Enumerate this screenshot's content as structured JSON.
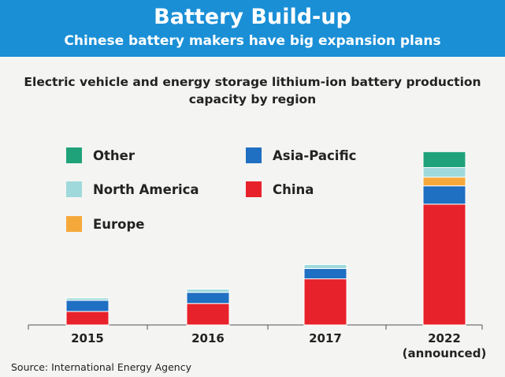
{
  "header": {
    "title": "Battery Build-up",
    "subtitle": "Chinese battery makers have big expansion plans"
  },
  "chart_data": {
    "type": "bar",
    "stacked": true,
    "title_line1": "Electric vehicle and energy storage lithium-ion battery production",
    "title_line2": "capacity by region",
    "categories": [
      "2015",
      "2016",
      "2017",
      "2022"
    ],
    "category_sublabels": [
      "",
      "",
      "",
      "(announced)"
    ],
    "series": [
      {
        "name": "China",
        "color": "#e8222a",
        "values": [
          17,
          27,
          58,
          152
        ]
      },
      {
        "name": "Asia-Pacific",
        "color": "#1f6fc2",
        "values": [
          14,
          14,
          13,
          23
        ]
      },
      {
        "name": "Europe",
        "color": "#f6a93b",
        "values": [
          0,
          0,
          0,
          11
        ]
      },
      {
        "name": "North America",
        "color": "#9fd9dc",
        "values": [
          3,
          4,
          5,
          12
        ]
      },
      {
        "name": "Other",
        "color": "#1fa27a",
        "values": [
          0,
          0,
          0,
          20
        ]
      }
    ],
    "legend_order": [
      "Other",
      "Asia-Pacific",
      "North America",
      "China",
      "Europe"
    ],
    "ylim": [
      0,
      260
    ],
    "grid": false,
    "legend_position": "top-left"
  },
  "source": "Source:  International Energy Agency"
}
